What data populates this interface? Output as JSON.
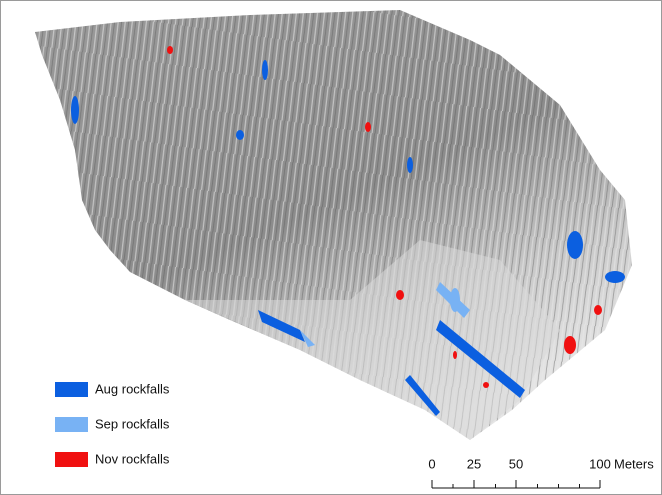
{
  "legend": [
    {
      "label": "Aug rockfalls",
      "color": "#0b5fe0"
    },
    {
      "label": "Sep rockfalls",
      "color": "#78b2f4"
    },
    {
      "label": "Nov rockfalls",
      "color": "#f01010"
    }
  ],
  "scale_bar": {
    "ticks": [
      0,
      25,
      50,
      100
    ],
    "unit": "Meters"
  }
}
